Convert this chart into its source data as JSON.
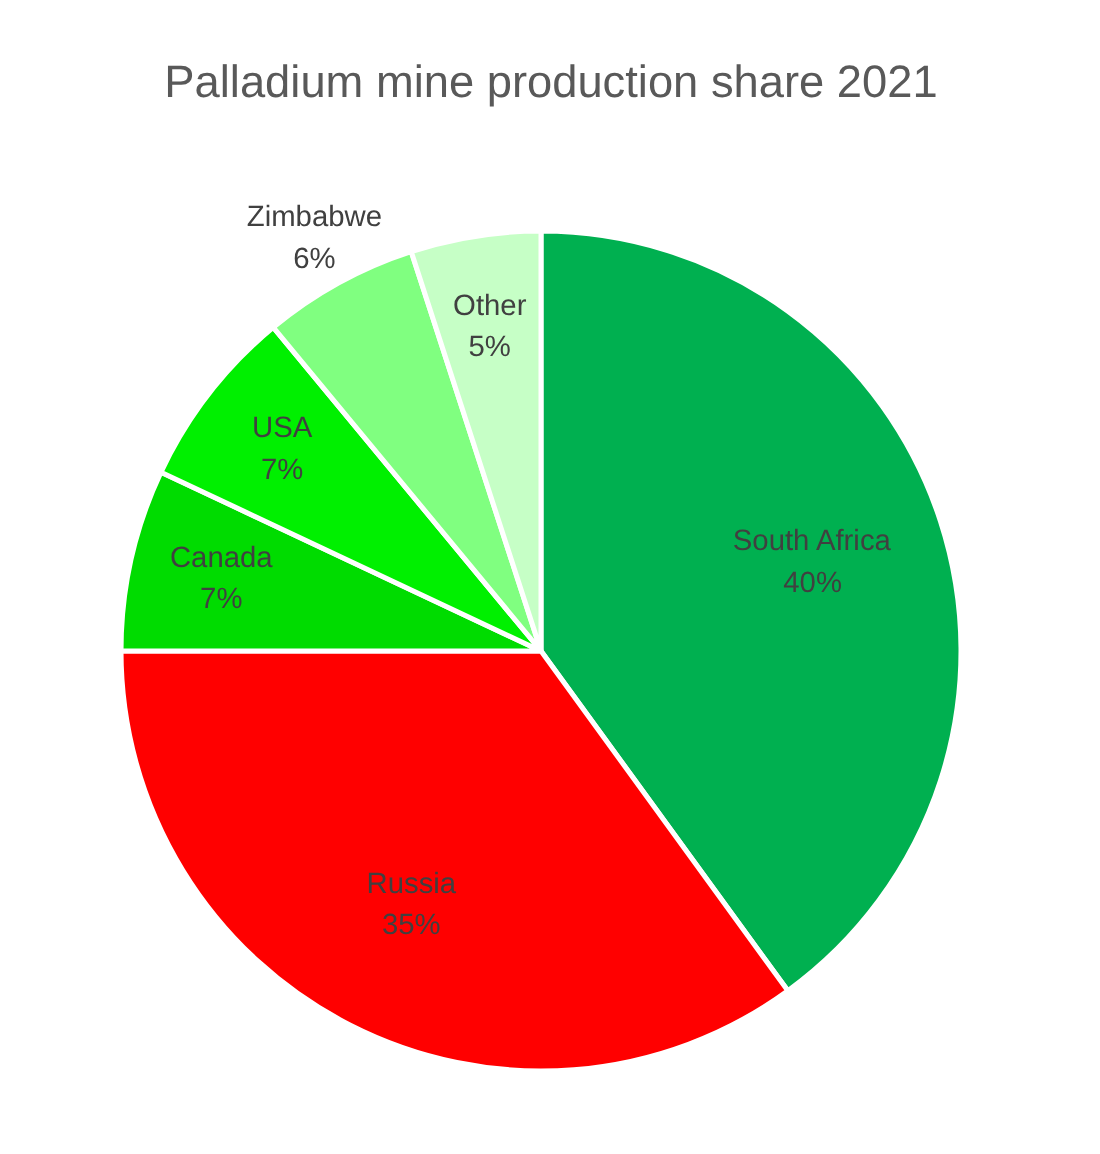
{
  "chart_data": {
    "type": "pie",
    "title": "Palladium mine production share 2021",
    "categories": [
      "South Africa",
      "Russia",
      "Canada",
      "USA",
      "Zimbabwe",
      "Other"
    ],
    "values": [
      40,
      35,
      7,
      7,
      6,
      5
    ],
    "colors": [
      "#00b050",
      "#ff0000",
      "#00dc00",
      "#00f000",
      "#80ff80",
      "#c6ffc6"
    ],
    "value_labels": [
      "40%",
      "35%",
      "7%",
      "7%",
      "6%",
      "5%"
    ]
  }
}
